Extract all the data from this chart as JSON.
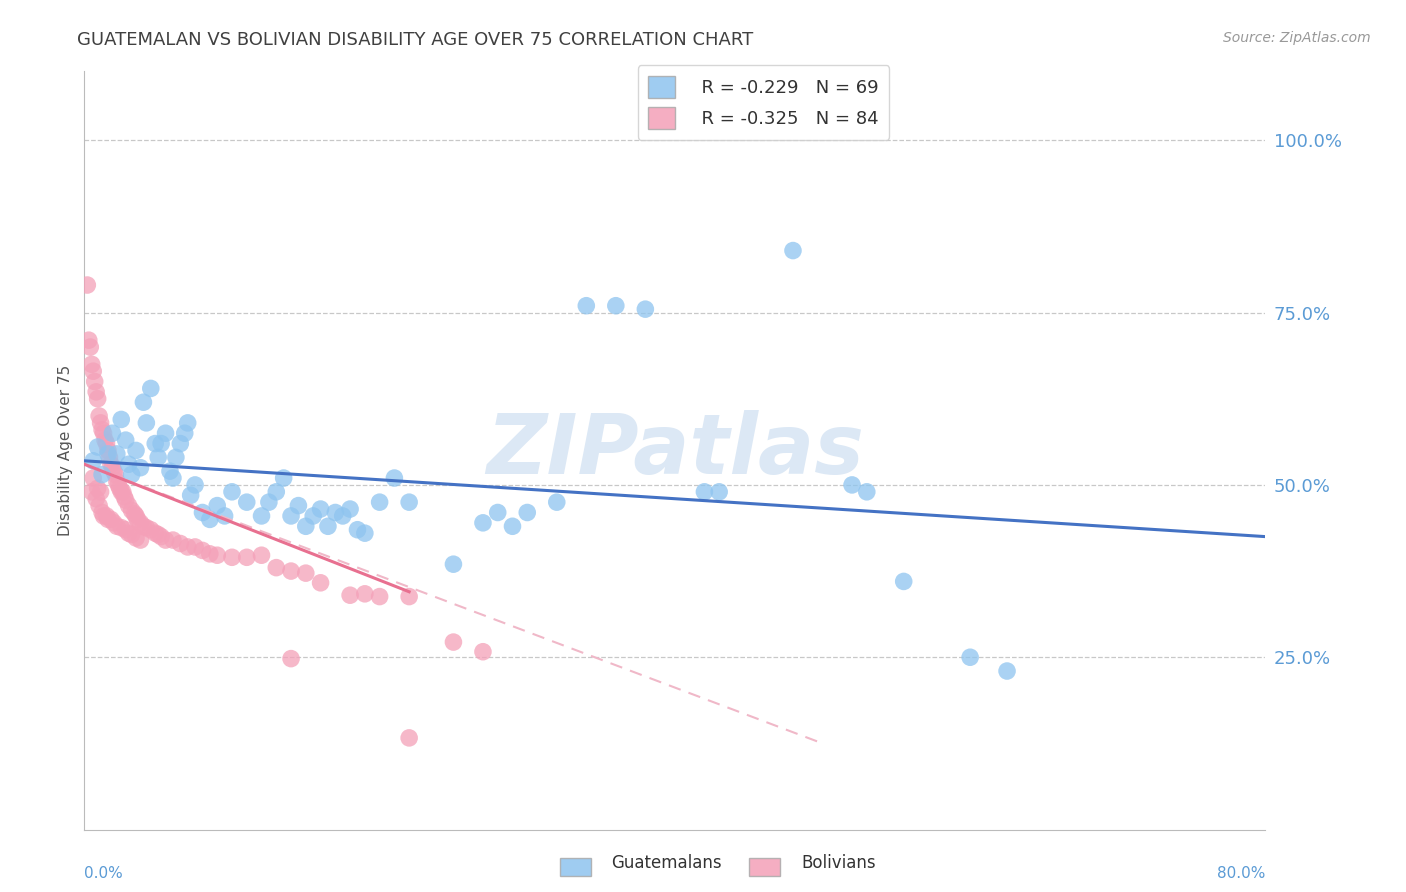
{
  "title": "GUATEMALAN VS BOLIVIAN DISABILITY AGE OVER 75 CORRELATION CHART",
  "source": "Source: ZipAtlas.com",
  "ylabel": "Disability Age Over 75",
  "ytick_labels": [
    "100.0%",
    "75.0%",
    "50.0%",
    "25.0%"
  ],
  "ytick_values": [
    1.0,
    0.75,
    0.5,
    0.25
  ],
  "xlim": [
    0.0,
    0.8
  ],
  "ylim": [
    0.0,
    1.1
  ],
  "legend_guatemalan_R": -0.229,
  "legend_guatemalan_N": 69,
  "legend_bolivian_R": -0.325,
  "legend_bolivian_N": 84,
  "watermark": "ZIPatlas",
  "guatemalan_points": [
    [
      0.006,
      0.535
    ],
    [
      0.009,
      0.555
    ],
    [
      0.012,
      0.515
    ],
    [
      0.016,
      0.545
    ],
    [
      0.019,
      0.575
    ],
    [
      0.022,
      0.545
    ],
    [
      0.025,
      0.595
    ],
    [
      0.028,
      0.565
    ],
    [
      0.03,
      0.53
    ],
    [
      0.032,
      0.515
    ],
    [
      0.035,
      0.55
    ],
    [
      0.038,
      0.525
    ],
    [
      0.04,
      0.62
    ],
    [
      0.042,
      0.59
    ],
    [
      0.045,
      0.64
    ],
    [
      0.048,
      0.56
    ],
    [
      0.05,
      0.54
    ],
    [
      0.052,
      0.56
    ],
    [
      0.055,
      0.575
    ],
    [
      0.058,
      0.52
    ],
    [
      0.06,
      0.51
    ],
    [
      0.062,
      0.54
    ],
    [
      0.065,
      0.56
    ],
    [
      0.068,
      0.575
    ],
    [
      0.07,
      0.59
    ],
    [
      0.072,
      0.485
    ],
    [
      0.075,
      0.5
    ],
    [
      0.08,
      0.46
    ],
    [
      0.085,
      0.45
    ],
    [
      0.09,
      0.47
    ],
    [
      0.095,
      0.455
    ],
    [
      0.1,
      0.49
    ],
    [
      0.11,
      0.475
    ],
    [
      0.12,
      0.455
    ],
    [
      0.125,
      0.475
    ],
    [
      0.13,
      0.49
    ],
    [
      0.135,
      0.51
    ],
    [
      0.14,
      0.455
    ],
    [
      0.145,
      0.47
    ],
    [
      0.15,
      0.44
    ],
    [
      0.155,
      0.455
    ],
    [
      0.16,
      0.465
    ],
    [
      0.165,
      0.44
    ],
    [
      0.17,
      0.46
    ],
    [
      0.175,
      0.455
    ],
    [
      0.18,
      0.465
    ],
    [
      0.185,
      0.435
    ],
    [
      0.19,
      0.43
    ],
    [
      0.2,
      0.475
    ],
    [
      0.21,
      0.51
    ],
    [
      0.22,
      0.475
    ],
    [
      0.25,
      0.385
    ],
    [
      0.27,
      0.445
    ],
    [
      0.28,
      0.46
    ],
    [
      0.29,
      0.44
    ],
    [
      0.3,
      0.46
    ],
    [
      0.32,
      0.475
    ],
    [
      0.34,
      0.76
    ],
    [
      0.36,
      0.76
    ],
    [
      0.38,
      0.755
    ],
    [
      0.42,
      0.49
    ],
    [
      0.43,
      0.49
    ],
    [
      0.48,
      0.84
    ],
    [
      0.52,
      0.5
    ],
    [
      0.53,
      0.49
    ],
    [
      0.555,
      0.36
    ],
    [
      0.6,
      0.25
    ],
    [
      0.625,
      0.23
    ]
  ],
  "bolivian_points": [
    [
      0.002,
      0.79
    ],
    [
      0.003,
      0.71
    ],
    [
      0.004,
      0.7
    ],
    [
      0.005,
      0.675
    ],
    [
      0.005,
      0.49
    ],
    [
      0.006,
      0.665
    ],
    [
      0.006,
      0.51
    ],
    [
      0.007,
      0.65
    ],
    [
      0.008,
      0.635
    ],
    [
      0.008,
      0.48
    ],
    [
      0.009,
      0.625
    ],
    [
      0.009,
      0.495
    ],
    [
      0.01,
      0.6
    ],
    [
      0.01,
      0.47
    ],
    [
      0.011,
      0.59
    ],
    [
      0.011,
      0.49
    ],
    [
      0.012,
      0.58
    ],
    [
      0.012,
      0.46
    ],
    [
      0.013,
      0.575
    ],
    [
      0.013,
      0.455
    ],
    [
      0.014,
      0.565
    ],
    [
      0.015,
      0.56
    ],
    [
      0.015,
      0.455
    ],
    [
      0.016,
      0.55
    ],
    [
      0.016,
      0.45
    ],
    [
      0.017,
      0.54
    ],
    [
      0.018,
      0.53
    ],
    [
      0.018,
      0.45
    ],
    [
      0.019,
      0.525
    ],
    [
      0.02,
      0.52
    ],
    [
      0.02,
      0.445
    ],
    [
      0.021,
      0.515
    ],
    [
      0.022,
      0.505
    ],
    [
      0.022,
      0.44
    ],
    [
      0.023,
      0.5
    ],
    [
      0.024,
      0.495
    ],
    [
      0.025,
      0.49
    ],
    [
      0.025,
      0.438
    ],
    [
      0.026,
      0.49
    ],
    [
      0.027,
      0.483
    ],
    [
      0.028,
      0.478
    ],
    [
      0.028,
      0.435
    ],
    [
      0.03,
      0.47
    ],
    [
      0.03,
      0.43
    ],
    [
      0.032,
      0.463
    ],
    [
      0.032,
      0.428
    ],
    [
      0.034,
      0.458
    ],
    [
      0.035,
      0.455
    ],
    [
      0.035,
      0.423
    ],
    [
      0.036,
      0.45
    ],
    [
      0.038,
      0.445
    ],
    [
      0.038,
      0.42
    ],
    [
      0.04,
      0.44
    ],
    [
      0.042,
      0.438
    ],
    [
      0.045,
      0.435
    ],
    [
      0.048,
      0.43
    ],
    [
      0.05,
      0.428
    ],
    [
      0.052,
      0.425
    ],
    [
      0.055,
      0.42
    ],
    [
      0.06,
      0.42
    ],
    [
      0.065,
      0.415
    ],
    [
      0.07,
      0.41
    ],
    [
      0.075,
      0.41
    ],
    [
      0.08,
      0.405
    ],
    [
      0.085,
      0.4
    ],
    [
      0.09,
      0.398
    ],
    [
      0.1,
      0.395
    ],
    [
      0.11,
      0.395
    ],
    [
      0.12,
      0.398
    ],
    [
      0.13,
      0.38
    ],
    [
      0.14,
      0.375
    ],
    [
      0.14,
      0.248
    ],
    [
      0.15,
      0.372
    ],
    [
      0.16,
      0.358
    ],
    [
      0.18,
      0.34
    ],
    [
      0.19,
      0.342
    ],
    [
      0.2,
      0.338
    ],
    [
      0.22,
      0.338
    ],
    [
      0.22,
      0.133
    ],
    [
      0.25,
      0.272
    ],
    [
      0.27,
      0.258
    ]
  ],
  "blue_color": "#8ec4ef",
  "blue_line_color": "#4472c4",
  "pink_color": "#f4a0b8",
  "pink_line_color": "#e87090",
  "pink_dash_color": "#f0b8c8",
  "background_color": "#ffffff",
  "grid_color": "#c8c8c8",
  "right_axis_color": "#5b9bd5",
  "title_color": "#404040",
  "title_fontsize": 13,
  "source_fontsize": 10,
  "watermark_color": "#dce8f5",
  "watermark_fontsize": 60,
  "legend_fontsize": 13,
  "axis_label_fontsize": 11
}
